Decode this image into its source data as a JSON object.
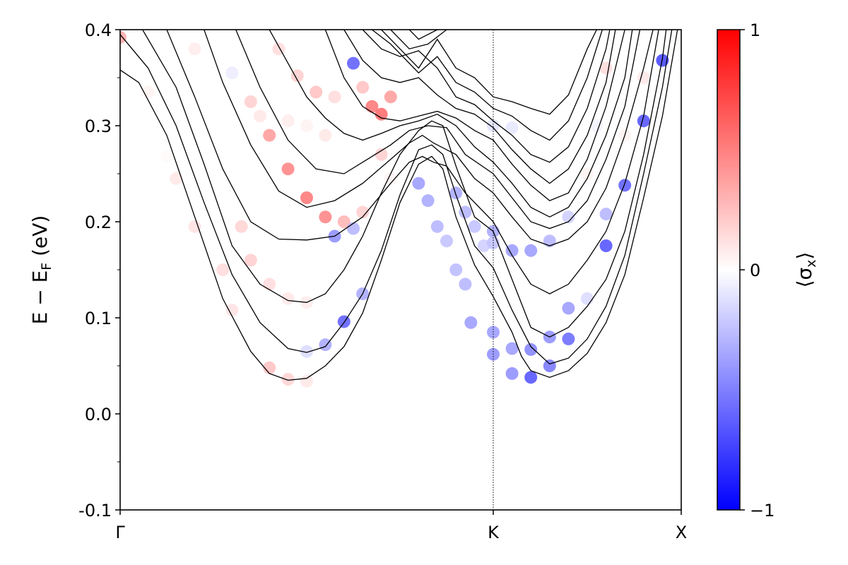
{
  "chart_data": {
    "type": "scatter",
    "title": "",
    "xlabel": "",
    "ylabel": "E − E",
    "ylabel_sub": "F",
    "ylabel_unit": " (eV)",
    "ylim": [
      -0.1,
      0.4
    ],
    "yticks": [
      -0.1,
      0.0,
      0.1,
      0.2,
      0.3,
      0.4
    ],
    "ytick_labels": [
      "-0.1",
      "0.0",
      "0.1",
      "0.2",
      "0.3",
      "0.4"
    ],
    "xlim": [
      0,
      3
    ],
    "xticks": [
      0,
      2,
      3
    ],
    "xtick_labels": [
      "Γ",
      "K",
      "X"
    ],
    "vline_at": 2,
    "grid": false,
    "colorbar": {
      "label": "⟨σ",
      "label_sub": "x",
      "label_end": "⟩",
      "range": [
        -1,
        1
      ],
      "ticks": [
        -1,
        0,
        1
      ],
      "tick_labels": [
        "−1",
        "0",
        "1"
      ],
      "colormap": "bwr",
      "color_low": "#0000ff",
      "color_mid": "#ffffff",
      "color_high": "#ff0000"
    },
    "line_color": "#000000",
    "bands": [
      [
        [
          0.0,
          0.358
        ],
        [
          0.1,
          0.345
        ],
        [
          0.25,
          0.29
        ],
        [
          0.4,
          0.205
        ],
        [
          0.55,
          0.12
        ],
        [
          0.7,
          0.065
        ],
        [
          0.8,
          0.042
        ],
        [
          0.9,
          0.035
        ],
        [
          1.0,
          0.037
        ],
        [
          1.1,
          0.05
        ],
        [
          1.2,
          0.07
        ],
        [
          1.3,
          0.105
        ],
        [
          1.4,
          0.16
        ],
        [
          1.5,
          0.22
        ],
        [
          1.6,
          0.26
        ],
        [
          1.67,
          0.268
        ],
        [
          1.73,
          0.255
        ],
        [
          1.8,
          0.205
        ],
        [
          1.9,
          0.155
        ],
        [
          2.0,
          0.122
        ],
        [
          2.1,
          0.085
        ],
        [
          2.15,
          0.06
        ],
        [
          2.2,
          0.045
        ],
        [
          2.3,
          0.038
        ],
        [
          2.4,
          0.045
        ],
        [
          2.5,
          0.063
        ],
        [
          2.6,
          0.095
        ],
        [
          2.7,
          0.145
        ],
        [
          2.8,
          0.225
        ],
        [
          2.9,
          0.31
        ],
        [
          2.98,
          0.4
        ]
      ],
      [
        [
          0.0,
          0.395
        ],
        [
          0.15,
          0.36
        ],
        [
          0.3,
          0.3
        ],
        [
          0.45,
          0.22
        ],
        [
          0.6,
          0.145
        ],
        [
          0.75,
          0.095
        ],
        [
          0.9,
          0.068
        ],
        [
          1.0,
          0.064
        ],
        [
          1.1,
          0.07
        ],
        [
          1.2,
          0.095
        ],
        [
          1.3,
          0.125
        ],
        [
          1.4,
          0.17
        ],
        [
          1.5,
          0.228
        ],
        [
          1.6,
          0.275
        ],
        [
          1.67,
          0.28
        ],
        [
          1.73,
          0.27
        ],
        [
          1.8,
          0.228
        ],
        [
          1.9,
          0.175
        ],
        [
          2.0,
          0.152
        ],
        [
          2.1,
          0.108
        ],
        [
          2.2,
          0.07
        ],
        [
          2.3,
          0.052
        ],
        [
          2.4,
          0.058
        ],
        [
          2.5,
          0.078
        ],
        [
          2.6,
          0.112
        ],
        [
          2.7,
          0.165
        ],
        [
          2.8,
          0.25
        ],
        [
          2.9,
          0.34
        ],
        [
          2.95,
          0.4
        ]
      ],
      [
        [
          0.12,
          0.4
        ],
        [
          0.3,
          0.34
        ],
        [
          0.45,
          0.26
        ],
        [
          0.6,
          0.175
        ],
        [
          0.75,
          0.135
        ],
        [
          0.9,
          0.118
        ],
        [
          1.0,
          0.116
        ],
        [
          1.1,
          0.125
        ],
        [
          1.2,
          0.15
        ],
        [
          1.3,
          0.185
        ],
        [
          1.4,
          0.23
        ],
        [
          1.5,
          0.27
        ],
        [
          1.6,
          0.295
        ],
        [
          1.67,
          0.305
        ],
        [
          1.73,
          0.3
        ],
        [
          1.8,
          0.258
        ],
        [
          1.9,
          0.205
        ],
        [
          2.0,
          0.19
        ],
        [
          2.1,
          0.14
        ],
        [
          2.2,
          0.09
        ],
        [
          2.3,
          0.08
        ],
        [
          2.4,
          0.09
        ],
        [
          2.5,
          0.112
        ],
        [
          2.6,
          0.14
        ],
        [
          2.7,
          0.19
        ],
        [
          2.8,
          0.27
        ],
        [
          2.9,
          0.37
        ],
        [
          2.92,
          0.4
        ]
      ],
      [
        [
          0.25,
          0.4
        ],
        [
          0.4,
          0.33
        ],
        [
          0.55,
          0.255
        ],
        [
          0.7,
          0.2
        ],
        [
          0.85,
          0.182
        ],
        [
          1.0,
          0.181
        ],
        [
          1.15,
          0.185
        ],
        [
          1.3,
          0.205
        ],
        [
          1.45,
          0.24
        ],
        [
          1.55,
          0.262
        ],
        [
          1.62,
          0.268
        ],
        [
          1.68,
          0.262
        ],
        [
          1.75,
          0.258
        ],
        [
          1.85,
          0.23
        ],
        [
          2.0,
          0.2
        ],
        [
          2.1,
          0.165
        ],
        [
          2.2,
          0.135
        ],
        [
          2.3,
          0.125
        ],
        [
          2.4,
          0.135
        ],
        [
          2.5,
          0.16
        ],
        [
          2.6,
          0.19
        ],
        [
          2.7,
          0.24
        ],
        [
          2.8,
          0.31
        ],
        [
          2.88,
          0.4
        ]
      ],
      [
        [
          0.45,
          0.4
        ],
        [
          0.55,
          0.345
        ],
        [
          0.7,
          0.28
        ],
        [
          0.85,
          0.232
        ],
        [
          1.0,
          0.215
        ],
        [
          1.15,
          0.222
        ],
        [
          1.3,
          0.24
        ],
        [
          1.45,
          0.265
        ],
        [
          1.55,
          0.282
        ],
        [
          1.62,
          0.29
        ],
        [
          1.68,
          0.282
        ],
        [
          1.8,
          0.27
        ],
        [
          1.9,
          0.245
        ],
        [
          2.0,
          0.23
        ],
        [
          2.1,
          0.205
        ],
        [
          2.2,
          0.182
        ],
        [
          2.3,
          0.175
        ],
        [
          2.4,
          0.182
        ],
        [
          2.5,
          0.2
        ],
        [
          2.6,
          0.235
        ],
        [
          2.7,
          0.29
        ],
        [
          2.8,
          0.36
        ],
        [
          2.85,
          0.4
        ]
      ],
      [
        [
          0.62,
          0.4
        ],
        [
          0.75,
          0.34
        ],
        [
          0.9,
          0.285
        ],
        [
          1.05,
          0.255
        ],
        [
          1.2,
          0.25
        ],
        [
          1.3,
          0.262
        ],
        [
          1.45,
          0.28
        ],
        [
          1.55,
          0.295
        ],
        [
          1.65,
          0.3
        ],
        [
          1.75,
          0.298
        ],
        [
          1.85,
          0.27
        ],
        [
          2.0,
          0.25
        ],
        [
          2.1,
          0.225
        ],
        [
          2.2,
          0.2
        ],
        [
          2.3,
          0.193
        ],
        [
          2.4,
          0.2
        ],
        [
          2.5,
          0.222
        ],
        [
          2.6,
          0.265
        ],
        [
          2.7,
          0.32
        ],
        [
          2.78,
          0.4
        ]
      ],
      [
        [
          0.8,
          0.4
        ],
        [
          0.9,
          0.365
        ],
        [
          1.0,
          0.33
        ],
        [
          1.1,
          0.308
        ],
        [
          1.2,
          0.292
        ],
        [
          1.3,
          0.285
        ],
        [
          1.4,
          0.292
        ],
        [
          1.5,
          0.3
        ],
        [
          1.6,
          0.305
        ],
        [
          1.7,
          0.312
        ],
        [
          1.8,
          0.3
        ],
        [
          1.9,
          0.278
        ],
        [
          2.0,
          0.262
        ],
        [
          2.1,
          0.24
        ],
        [
          2.2,
          0.215
        ],
        [
          2.3,
          0.205
        ],
        [
          2.4,
          0.215
        ],
        [
          2.5,
          0.245
        ],
        [
          2.6,
          0.29
        ],
        [
          2.7,
          0.35
        ],
        [
          2.74,
          0.4
        ]
      ],
      [
        [
          1.1,
          0.4
        ],
        [
          1.2,
          0.35
        ],
        [
          1.3,
          0.32
        ],
        [
          1.4,
          0.308
        ],
        [
          1.5,
          0.305
        ],
        [
          1.6,
          0.31
        ],
        [
          1.7,
          0.315
        ],
        [
          1.8,
          0.308
        ],
        [
          1.9,
          0.295
        ],
        [
          2.0,
          0.285
        ],
        [
          2.1,
          0.26
        ],
        [
          2.2,
          0.238
        ],
        [
          2.3,
          0.222
        ],
        [
          2.4,
          0.23
        ],
        [
          2.5,
          0.265
        ],
        [
          2.6,
          0.32
        ],
        [
          2.7,
          0.4
        ]
      ],
      [
        [
          1.2,
          0.4
        ],
        [
          1.3,
          0.368
        ],
        [
          1.4,
          0.35
        ],
        [
          1.5,
          0.345
        ],
        [
          1.6,
          0.35
        ],
        [
          1.7,
          0.332
        ],
        [
          1.8,
          0.318
        ],
        [
          1.9,
          0.312
        ],
        [
          2.0,
          0.298
        ],
        [
          2.1,
          0.275
        ],
        [
          2.2,
          0.255
        ],
        [
          2.3,
          0.24
        ],
        [
          2.4,
          0.255
        ],
        [
          2.5,
          0.29
        ],
        [
          2.6,
          0.345
        ],
        [
          2.65,
          0.4
        ]
      ],
      [
        [
          1.3,
          0.4
        ],
        [
          1.4,
          0.38
        ],
        [
          1.5,
          0.372
        ],
        [
          1.6,
          0.378
        ],
        [
          1.7,
          0.36
        ],
        [
          1.8,
          0.33
        ],
        [
          1.9,
          0.322
        ],
        [
          2.0,
          0.305
        ],
        [
          2.1,
          0.29
        ],
        [
          2.2,
          0.27
        ],
        [
          2.3,
          0.262
        ],
        [
          2.4,
          0.278
        ],
        [
          2.5,
          0.318
        ],
        [
          2.6,
          0.38
        ],
        [
          2.62,
          0.4
        ]
      ],
      [
        [
          1.35,
          0.4
        ],
        [
          1.45,
          0.385
        ],
        [
          1.6,
          0.355
        ],
        [
          1.7,
          0.372
        ],
        [
          1.8,
          0.345
        ],
        [
          1.9,
          0.335
        ],
        [
          2.0,
          0.318
        ],
        [
          2.1,
          0.31
        ],
        [
          2.2,
          0.295
        ],
        [
          2.3,
          0.285
        ],
        [
          2.4,
          0.305
        ],
        [
          2.5,
          0.35
        ],
        [
          2.58,
          0.4
        ]
      ],
      [
        [
          1.4,
          0.4
        ],
        [
          1.5,
          0.38
        ],
        [
          1.6,
          0.36
        ],
        [
          1.7,
          0.39
        ],
        [
          1.8,
          0.36
        ],
        [
          1.9,
          0.35
        ],
        [
          2.0,
          0.33
        ],
        [
          2.1,
          0.325
        ],
        [
          2.2,
          0.318
        ],
        [
          2.3,
          0.312
        ],
        [
          2.4,
          0.332
        ],
        [
          2.5,
          0.38
        ],
        [
          2.55,
          0.4
        ]
      ],
      [
        [
          1.45,
          0.4
        ],
        [
          1.55,
          0.38
        ],
        [
          1.65,
          0.385
        ],
        [
          1.75,
          0.4
        ]
      ],
      [
        [
          1.55,
          0.4
        ],
        [
          1.6,
          0.39
        ],
        [
          1.7,
          0.4
        ]
      ]
    ],
    "points": [
      [
        0.0,
        0.392,
        0.35
      ],
      [
        0.15,
        0.335,
        0.05
      ],
      [
        0.25,
        0.268,
        0.02
      ],
      [
        0.3,
        0.245,
        0.1
      ],
      [
        0.4,
        0.195,
        0.12
      ],
      [
        0.55,
        0.15,
        0.15
      ],
      [
        0.6,
        0.108,
        0.12
      ],
      [
        0.8,
        0.048,
        0.25
      ],
      [
        0.9,
        0.036,
        0.18
      ],
      [
        1.0,
        0.034,
        0.1
      ],
      [
        0.4,
        0.38,
        0.08
      ],
      [
        0.6,
        0.355,
        -0.08
      ],
      [
        0.7,
        0.325,
        0.2
      ],
      [
        0.8,
        0.29,
        0.4
      ],
      [
        0.9,
        0.255,
        0.5
      ],
      [
        1.0,
        0.225,
        0.55
      ],
      [
        1.1,
        0.205,
        0.5
      ],
      [
        1.2,
        0.2,
        0.3
      ],
      [
        0.65,
        0.195,
        0.18
      ],
      [
        0.7,
        0.16,
        0.2
      ],
      [
        0.8,
        0.135,
        0.15
      ],
      [
        0.9,
        0.12,
        0.1
      ],
      [
        1.0,
        0.116,
        0.08
      ],
      [
        0.75,
        0.31,
        0.1
      ],
      [
        0.9,
        0.305,
        0.08
      ],
      [
        1.0,
        0.3,
        0.05
      ],
      [
        1.1,
        0.29,
        0.1
      ],
      [
        0.85,
        0.38,
        0.15
      ],
      [
        0.95,
        0.352,
        0.2
      ],
      [
        1.05,
        0.335,
        0.25
      ],
      [
        1.15,
        0.33,
        0.15
      ],
      [
        1.25,
        0.365,
        -0.65
      ],
      [
        1.3,
        0.34,
        0.25
      ],
      [
        1.35,
        0.32,
        0.55
      ],
      [
        1.4,
        0.312,
        0.6
      ],
      [
        1.45,
        0.33,
        0.4
      ],
      [
        1.0,
        0.065,
        -0.15
      ],
      [
        1.1,
        0.072,
        -0.35
      ],
      [
        1.2,
        0.096,
        -0.65
      ],
      [
        1.3,
        0.125,
        -0.35
      ],
      [
        1.15,
        0.185,
        -0.45
      ],
      [
        1.25,
        0.193,
        -0.3
      ],
      [
        1.3,
        0.21,
        0.2
      ],
      [
        1.4,
        0.27,
        0.2
      ],
      [
        1.45,
        0.245,
        0.05
      ],
      [
        1.6,
        0.24,
        -0.4
      ],
      [
        1.65,
        0.222,
        -0.35
      ],
      [
        1.7,
        0.195,
        -0.3
      ],
      [
        1.75,
        0.18,
        -0.25
      ],
      [
        1.8,
        0.15,
        -0.28
      ],
      [
        1.85,
        0.135,
        -0.3
      ],
      [
        1.88,
        0.095,
        -0.4
      ],
      [
        1.8,
        0.23,
        -0.35
      ],
      [
        1.85,
        0.21,
        -0.3
      ],
      [
        1.9,
        0.195,
        -0.25
      ],
      [
        1.95,
        0.175,
        -0.2
      ],
      [
        2.0,
        0.085,
        -0.4
      ],
      [
        2.0,
        0.062,
        -0.45
      ],
      [
        2.1,
        0.042,
        -0.45
      ],
      [
        2.1,
        0.068,
        -0.4
      ],
      [
        2.2,
        0.038,
        -0.7
      ],
      [
        2.2,
        0.067,
        -0.5
      ],
      [
        2.3,
        0.05,
        -0.55
      ],
      [
        2.3,
        0.08,
        -0.45
      ],
      [
        2.1,
        0.17,
        -0.4
      ],
      [
        2.2,
        0.17,
        -0.4
      ],
      [
        2.3,
        0.18,
        -0.3
      ],
      [
        2.4,
        0.11,
        -0.4
      ],
      [
        2.4,
        0.078,
        -0.6
      ],
      [
        2.0,
        0.19,
        -0.35
      ],
      [
        2.0,
        0.178,
        -0.25
      ],
      [
        2.4,
        0.205,
        -0.2
      ],
      [
        2.5,
        0.12,
        -0.15
      ],
      [
        2.6,
        0.175,
        -0.7
      ],
      [
        2.6,
        0.208,
        -0.3
      ],
      [
        2.7,
        0.238,
        -0.65
      ],
      [
        2.8,
        0.305,
        -0.7
      ],
      [
        2.9,
        0.368,
        -0.75
      ],
      [
        2.0,
        0.3,
        -0.12
      ],
      [
        2.1,
        0.298,
        -0.1
      ],
      [
        2.6,
        0.36,
        0.15
      ],
      [
        2.7,
        0.29,
        0.05
      ],
      [
        2.8,
        0.35,
        0.1
      ],
      [
        2.5,
        0.25,
        0.05
      ],
      [
        2.55,
        0.3,
        -0.05
      ]
    ]
  }
}
